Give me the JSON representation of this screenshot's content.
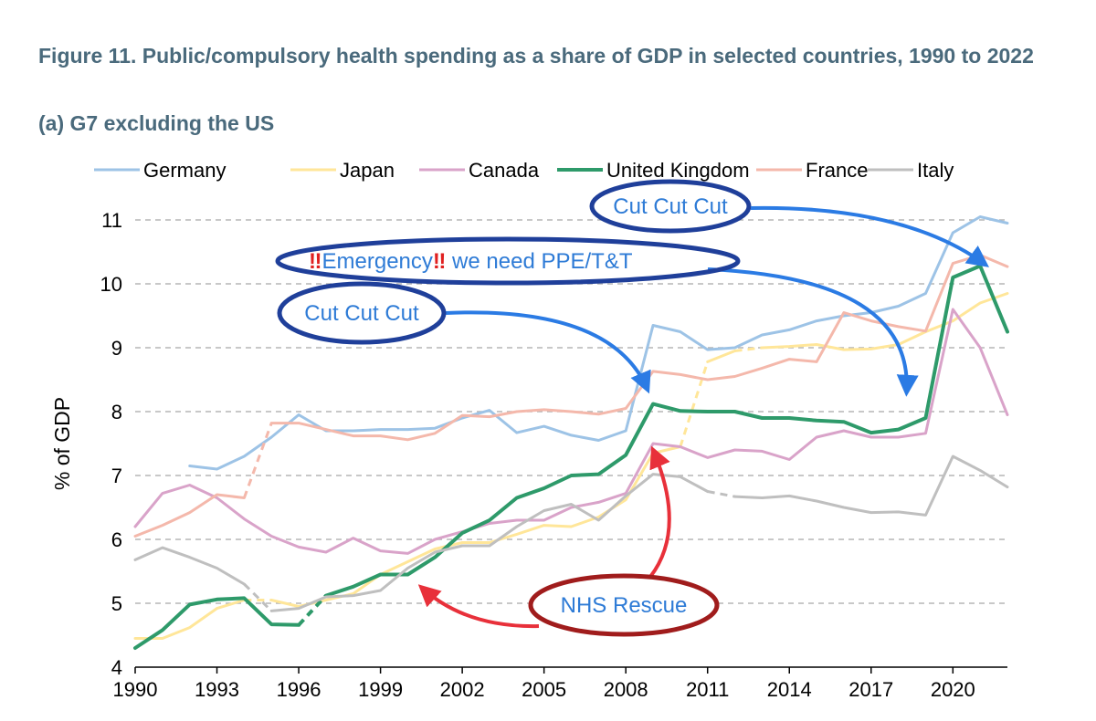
{
  "title": "Figure 11. Public/compulsory health spending as a share of GDP in selected countries, 1990 to 2022",
  "subtitle": "(a) G7 excluding the US",
  "chart_data": {
    "type": "line",
    "ylabel": "% of GDP",
    "xlabel": "",
    "xlim": [
      1990,
      2022
    ],
    "ylim": [
      4,
      11
    ],
    "x_ticks": [
      1990,
      1993,
      1996,
      1999,
      2002,
      2005,
      2008,
      2011,
      2014,
      2017,
      2020
    ],
    "y_ticks": [
      4,
      5,
      6,
      7,
      8,
      9,
      10,
      11
    ],
    "grid": "horizontal dashed",
    "legend_position": "top",
    "series": [
      {
        "name": "Germany",
        "color": "#9dc3e6",
        "points": [
          [
            1992,
            7.15
          ],
          [
            1993,
            7.1
          ],
          [
            1994,
            7.3
          ],
          [
            1995,
            7.6
          ],
          [
            1996,
            7.95
          ],
          [
            1997,
            7.7
          ],
          [
            1998,
            7.7
          ],
          [
            1999,
            7.72
          ],
          [
            2000,
            7.72
          ],
          [
            2001,
            7.74
          ],
          [
            2002,
            7.9
          ],
          [
            2003,
            8.02
          ],
          [
            2004,
            7.67
          ],
          [
            2005,
            7.77
          ],
          [
            2006,
            7.63
          ],
          [
            2007,
            7.55
          ],
          [
            2008,
            7.7
          ],
          [
            2009,
            9.35
          ],
          [
            2010,
            9.25
          ],
          [
            2011,
            8.97
          ],
          [
            2012,
            9.0
          ],
          [
            2013,
            9.2
          ],
          [
            2014,
            9.28
          ],
          [
            2015,
            9.42
          ],
          [
            2016,
            9.5
          ],
          [
            2017,
            9.55
          ],
          [
            2018,
            9.65
          ],
          [
            2019,
            9.85
          ],
          [
            2020,
            10.8
          ],
          [
            2021,
            11.05
          ],
          [
            2022,
            10.95
          ]
        ]
      },
      {
        "name": "Japan",
        "color": "#ffe699",
        "points": [
          [
            1990,
            4.45
          ],
          [
            1991,
            4.45
          ],
          [
            1992,
            4.62
          ],
          [
            1993,
            4.92
          ],
          [
            1994,
            5.05
          ],
          [
            1995,
            5.05
          ],
          [
            1996,
            4.95
          ],
          [
            1997,
            5.05
          ],
          [
            1998,
            5.15
          ],
          [
            1999,
            5.45
          ],
          [
            2000,
            5.65
          ],
          [
            2001,
            5.85
          ],
          [
            2002,
            5.95
          ],
          [
            2003,
            5.95
          ],
          [
            2004,
            6.08
          ],
          [
            2005,
            6.22
          ],
          [
            2006,
            6.2
          ],
          [
            2007,
            6.35
          ],
          [
            2008,
            6.62
          ],
          [
            2009,
            7.35
          ],
          [
            2010,
            7.45
          ],
          [
            2011,
            8.78
          ],
          [
            2012,
            8.95
          ],
          [
            2013,
            9.0
          ],
          [
            2014,
            9.02
          ],
          [
            2015,
            9.05
          ],
          [
            2016,
            8.97
          ],
          [
            2017,
            8.98
          ],
          [
            2018,
            9.05
          ],
          [
            2019,
            9.25
          ],
          [
            2020,
            9.42
          ],
          [
            2021,
            9.7
          ],
          [
            2022,
            9.85
          ]
        ],
        "dashed": [
          [
            1994,
            1995
          ],
          [
            2010,
            2011
          ],
          [
            2012,
            2013
          ]
        ]
      },
      {
        "name": "Canada",
        "color": "#d9a3c9",
        "points": [
          [
            1990,
            6.2
          ],
          [
            1991,
            6.72
          ],
          [
            1992,
            6.85
          ],
          [
            1993,
            6.65
          ],
          [
            1994,
            6.32
          ],
          [
            1995,
            6.05
          ],
          [
            1996,
            5.88
          ],
          [
            1997,
            5.8
          ],
          [
            1998,
            6.02
          ],
          [
            1999,
            5.82
          ],
          [
            2000,
            5.78
          ],
          [
            2001,
            6.0
          ],
          [
            2002,
            6.12
          ],
          [
            2003,
            6.25
          ],
          [
            2004,
            6.3
          ],
          [
            2005,
            6.3
          ],
          [
            2006,
            6.5
          ],
          [
            2007,
            6.58
          ],
          [
            2008,
            6.72
          ],
          [
            2009,
            7.5
          ],
          [
            2010,
            7.45
          ],
          [
            2011,
            7.28
          ],
          [
            2012,
            7.4
          ],
          [
            2013,
            7.38
          ],
          [
            2014,
            7.25
          ],
          [
            2015,
            7.6
          ],
          [
            2016,
            7.7
          ],
          [
            2017,
            7.6
          ],
          [
            2018,
            7.6
          ],
          [
            2019,
            7.66
          ],
          [
            2020,
            9.6
          ],
          [
            2021,
            9.0
          ],
          [
            2022,
            7.95
          ]
        ]
      },
      {
        "name": "United Kingdom",
        "color": "#2e9a6a",
        "points": [
          [
            1990,
            4.3
          ],
          [
            1991,
            4.58
          ],
          [
            1992,
            4.98
          ],
          [
            1993,
            5.06
          ],
          [
            1994,
            5.08
          ],
          [
            1995,
            4.67
          ],
          [
            1996,
            4.66
          ],
          [
            1997,
            5.12
          ],
          [
            1998,
            5.26
          ],
          [
            1999,
            5.45
          ],
          [
            2000,
            5.45
          ],
          [
            2001,
            5.72
          ],
          [
            2002,
            6.1
          ],
          [
            2003,
            6.3
          ],
          [
            2004,
            6.65
          ],
          [
            2005,
            6.8
          ],
          [
            2006,
            7.0
          ],
          [
            2007,
            7.02
          ],
          [
            2008,
            7.32
          ],
          [
            2009,
            8.12
          ],
          [
            2010,
            8.01
          ],
          [
            2011,
            8.0
          ],
          [
            2012,
            8.0
          ],
          [
            2013,
            7.9
          ],
          [
            2014,
            7.9
          ],
          [
            2015,
            7.86
          ],
          [
            2016,
            7.84
          ],
          [
            2017,
            7.67
          ],
          [
            2018,
            7.72
          ],
          [
            2019,
            7.9
          ],
          [
            2020,
            10.1
          ],
          [
            2021,
            10.28
          ],
          [
            2022,
            9.25
          ]
        ],
        "dashed": [
          [
            1996,
            1997
          ]
        ]
      },
      {
        "name": "France",
        "color": "#f4b8ab",
        "points": [
          [
            1990,
            6.05
          ],
          [
            1991,
            6.22
          ],
          [
            1992,
            6.42
          ],
          [
            1993,
            6.7
          ],
          [
            1994,
            6.65
          ],
          [
            1995,
            7.82
          ],
          [
            1996,
            7.82
          ],
          [
            1997,
            7.72
          ],
          [
            1998,
            7.62
          ],
          [
            1999,
            7.62
          ],
          [
            2000,
            7.56
          ],
          [
            2001,
            7.66
          ],
          [
            2002,
            7.94
          ],
          [
            2003,
            7.92
          ],
          [
            2004,
            8.0
          ],
          [
            2005,
            8.03
          ],
          [
            2006,
            8.0
          ],
          [
            2007,
            7.96
          ],
          [
            2008,
            8.05
          ],
          [
            2009,
            8.63
          ],
          [
            2010,
            8.58
          ],
          [
            2011,
            8.5
          ],
          [
            2012,
            8.55
          ],
          [
            2013,
            8.68
          ],
          [
            2014,
            8.82
          ],
          [
            2015,
            8.78
          ],
          [
            2016,
            9.55
          ],
          [
            2017,
            9.42
          ],
          [
            2018,
            9.33
          ],
          [
            2019,
            9.26
          ],
          [
            2020,
            10.32
          ],
          [
            2021,
            10.45
          ],
          [
            2022,
            10.27
          ]
        ],
        "dashed": [
          [
            1994,
            1995
          ]
        ]
      },
      {
        "name": "Italy",
        "color": "#bfbfbf",
        "points": [
          [
            1990,
            5.68
          ],
          [
            1991,
            5.87
          ],
          [
            1992,
            5.72
          ],
          [
            1993,
            5.55
          ],
          [
            1994,
            5.3
          ],
          [
            1995,
            4.88
          ],
          [
            1996,
            4.92
          ],
          [
            1997,
            5.1
          ],
          [
            1998,
            5.12
          ],
          [
            1999,
            5.2
          ],
          [
            2000,
            5.55
          ],
          [
            2001,
            5.8
          ],
          [
            2002,
            5.9
          ],
          [
            2003,
            5.9
          ],
          [
            2004,
            6.2
          ],
          [
            2005,
            6.45
          ],
          [
            2006,
            6.55
          ],
          [
            2007,
            6.3
          ],
          [
            2008,
            6.68
          ],
          [
            2009,
            7.02
          ],
          [
            2010,
            6.98
          ],
          [
            2011,
            6.75
          ],
          [
            2012,
            6.67
          ],
          [
            2013,
            6.65
          ],
          [
            2014,
            6.68
          ],
          [
            2015,
            6.6
          ],
          [
            2016,
            6.5
          ],
          [
            2017,
            6.42
          ],
          [
            2018,
            6.43
          ],
          [
            2019,
            6.38
          ],
          [
            2020,
            7.3
          ],
          [
            2021,
            7.08
          ],
          [
            2022,
            6.82
          ]
        ],
        "dashed": [
          [
            1994,
            1995
          ],
          [
            2011,
            2012
          ]
        ]
      }
    ],
    "annotations": [
      {
        "id": "cut1",
        "text": "Cut Cut Cut",
        "ellipse_color": "#1f3f9a",
        "text_color": "#2e7bd6",
        "arrow_color": "#2b7be4",
        "arrow_to": [
          2008.8,
          8.2
        ]
      },
      {
        "id": "cut2",
        "text": "Cut Cut Cut",
        "ellipse_color": "#1f3f9a",
        "text_color": "#2e7bd6",
        "arrow_color": "#2b7be4",
        "arrow_to": [
          2021.2,
          10.3
        ]
      },
      {
        "id": "emergency",
        "text_parts": [
          "‼",
          "Emergency",
          "‼",
          " we need PPE/T&T"
        ],
        "mark_color": "#e02020",
        "ellipse_color": "#1f3f9a",
        "text_color": "#2e7bd6",
        "arrow_color": "#2b7be4",
        "arrow_to": [
          2018.3,
          8.3
        ]
      },
      {
        "id": "nhs",
        "text": "NHS Rescue",
        "ellipse_color": "#a01c1c",
        "text_color": "#2e7bd6",
        "arrow_color": "#e8303a",
        "arrow_to": [
          [
            2000.5,
            5.25
          ],
          [
            2009.0,
            7.4
          ]
        ]
      }
    ]
  }
}
